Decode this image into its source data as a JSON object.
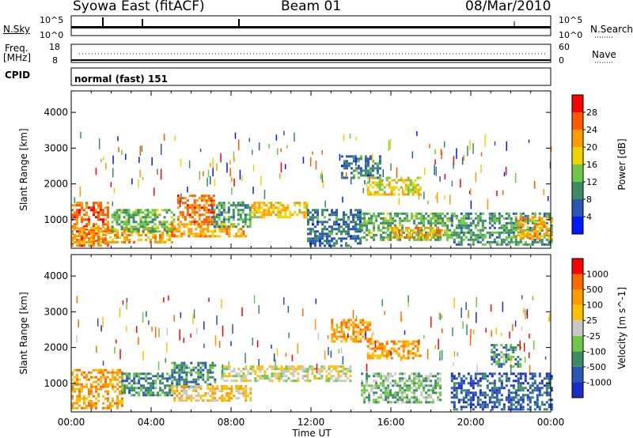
{
  "header": {
    "station": "Syowa East (fitACF)",
    "beam": "Beam 01",
    "date": "08/Mar/2010"
  },
  "noise_panel": {
    "left_label": "N.Sky",
    "left_ticks": [
      "10^5",
      "10^0"
    ],
    "right_label": "N.Search",
    "right_ticks": [
      "10^5",
      "10^0"
    ]
  },
  "freq_panel": {
    "left_label_line1": "Freq.",
    "left_label_line2": "[MHz]",
    "left_ticks": [
      "18",
      "8"
    ],
    "right_label": "Nave",
    "right_ticks": [
      "60",
      "0"
    ]
  },
  "cpid": {
    "label": "CPID",
    "value": "normal (fast) 151"
  },
  "colors": {
    "power_scale": [
      "#0018ff",
      "#2d55b8",
      "#3c8c64",
      "#6ec846",
      "#f0d200",
      "#ff9a00",
      "#ff5a00",
      "#ff0000"
    ],
    "velocity_scale": [
      "#ff0000",
      "#ff6a00",
      "#ff9c00",
      "#ffc000",
      "#c8c8c8",
      "#6ec846",
      "#3c8c64",
      "#2d55b8",
      "#1a2cc8"
    ]
  },
  "chart_data": [
    {
      "type": "heatmap",
      "name": "power",
      "ylabel": "Slant Range [km]",
      "yticks": [
        "1000",
        "2000",
        "3000",
        "4000"
      ],
      "ylim": [
        200,
        4600
      ],
      "xticks": [
        "00:00",
        "04:00",
        "08:00",
        "12:00",
        "16:00",
        "20:00",
        "00:00"
      ],
      "xlim": [
        0,
        24
      ],
      "colorbar_label": "Power [dB]",
      "colorbar_ticks": [
        "4",
        "8",
        "12",
        "16",
        "20",
        "24",
        "28"
      ],
      "colorbar_range": [
        0,
        32
      ],
      "regions": [
        {
          "t0": 0.0,
          "t1": 1.8,
          "r0": 300,
          "r1": 1500,
          "level": 26
        },
        {
          "t0": 0.0,
          "t1": 5.2,
          "r0": 350,
          "r1": 800,
          "level": 22
        },
        {
          "t0": 2.0,
          "t1": 5.2,
          "r0": 700,
          "r1": 1300,
          "level": 12
        },
        {
          "t0": 5.3,
          "t1": 7.2,
          "r0": 900,
          "r1": 1700,
          "level": 26
        },
        {
          "t0": 5.0,
          "t1": 8.8,
          "r0": 550,
          "r1": 900,
          "level": 22
        },
        {
          "t0": 7.0,
          "t1": 9.0,
          "r0": 800,
          "r1": 1500,
          "level": 10
        },
        {
          "t0": 9.0,
          "t1": 11.8,
          "r0": 1100,
          "r1": 1500,
          "level": 20
        },
        {
          "t0": 11.8,
          "t1": 14.5,
          "r0": 300,
          "r1": 1300,
          "level": 7
        },
        {
          "t0": 13.5,
          "t1": 15.5,
          "r0": 2200,
          "r1": 2800,
          "level": 7
        },
        {
          "t0": 14.8,
          "t1": 17.5,
          "r0": 1700,
          "r1": 2200,
          "level": 18
        },
        {
          "t0": 14.5,
          "t1": 19.0,
          "r0": 450,
          "r1": 1200,
          "level": 12
        },
        {
          "t0": 16.0,
          "t1": 18.5,
          "r0": 500,
          "r1": 800,
          "level": 22
        },
        {
          "t0": 19.0,
          "t1": 24.0,
          "r0": 300,
          "r1": 1200,
          "level": 10
        },
        {
          "t0": 22.2,
          "t1": 24.0,
          "r0": 500,
          "r1": 1100,
          "level": 22
        }
      ]
    },
    {
      "type": "heatmap",
      "name": "velocity",
      "ylabel": "Slant Range [km]",
      "yticks": [
        "1000",
        "2000",
        "3000",
        "4000"
      ],
      "ylim": [
        200,
        4600
      ],
      "xticks": [
        "00:00",
        "04:00",
        "08:00",
        "12:00",
        "16:00",
        "20:00",
        "00:00"
      ],
      "xlim": [
        0,
        24
      ],
      "xlabel": "Time UT",
      "colorbar_label": "Velocity [m s^-1]",
      "colorbar_ticks": [
        "1000",
        "500",
        "100",
        "25",
        "-25",
        "-100",
        "-500",
        "-1000"
      ],
      "regions": [
        {
          "t0": 0.0,
          "t1": 2.5,
          "r0": 300,
          "r1": 1400,
          "level": 2
        },
        {
          "t0": 2.5,
          "t1": 5.0,
          "r0": 700,
          "r1": 1300,
          "level": 6
        },
        {
          "t0": 5.0,
          "t1": 7.2,
          "r0": 900,
          "r1": 1600,
          "level": 6
        },
        {
          "t0": 5.0,
          "t1": 9.0,
          "r0": 550,
          "r1": 950,
          "level": 3
        },
        {
          "t0": 7.5,
          "t1": 14.0,
          "r0": 1100,
          "r1": 1500,
          "level": 4
        },
        {
          "t0": 13.0,
          "t1": 15.0,
          "r0": 2200,
          "r1": 2800,
          "level": 2
        },
        {
          "t0": 14.8,
          "t1": 17.5,
          "r0": 1700,
          "r1": 2200,
          "level": 2
        },
        {
          "t0": 14.5,
          "t1": 18.5,
          "r0": 450,
          "r1": 1300,
          "level": 5
        },
        {
          "t0": 19.0,
          "t1": 24.0,
          "r0": 300,
          "r1": 1300,
          "level": 7
        },
        {
          "t0": 21.0,
          "t1": 22.5,
          "r0": 1500,
          "r1": 2100,
          "level": 6
        }
      ]
    }
  ],
  "x_axis_label": "Time UT"
}
